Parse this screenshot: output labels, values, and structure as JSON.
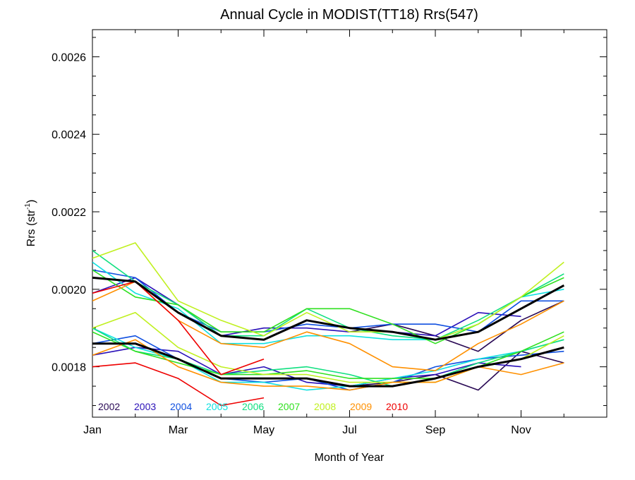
{
  "chart_data": {
    "type": "line",
    "title": "Annual Cycle in MODIST(TT18) Rrs(547)",
    "xlabel": "Month of Year",
    "ylabel_main": "Rrs (str",
    "ylabel_sup": "-1",
    "ylabel_close": ")",
    "xlim": [
      1,
      13
    ],
    "ylim": [
      0.00167,
      0.00267
    ],
    "x_ticks": [
      {
        "value": 1,
        "label": "Jan"
      },
      {
        "value": 3,
        "label": "Mar"
      },
      {
        "value": 5,
        "label": "May"
      },
      {
        "value": 7,
        "label": "Jul"
      },
      {
        "value": 9,
        "label": "Sep"
      },
      {
        "value": 11,
        "label": "Nov"
      }
    ],
    "y_ticks": [
      {
        "value": 0.0018,
        "label": "0.0018"
      },
      {
        "value": 0.002,
        "label": "0.0020"
      },
      {
        "value": 0.0022,
        "label": "0.0022"
      },
      {
        "value": 0.0024,
        "label": "0.0024"
      },
      {
        "value": 0.0026,
        "label": "0.0026"
      }
    ],
    "grid": false,
    "legend_position": "bottom-left",
    "x": [
      1,
      2,
      3,
      4,
      5,
      6,
      7,
      8,
      9,
      10,
      11,
      12
    ],
    "series": [
      {
        "name": "2002",
        "color": "#2a0a55",
        "upper": [
          null,
          null,
          null,
          null,
          null,
          null,
          0.00189,
          0.00191,
          0.00188,
          0.00184,
          0.00192,
          0.00197
        ],
        "lower": [
          null,
          null,
          null,
          null,
          null,
          null,
          0.00175,
          0.00176,
          0.00178,
          0.00174,
          0.00184,
          0.00181
        ]
      },
      {
        "name": "2003",
        "color": "#2a10b8",
        "upper": [
          0.00199,
          0.00203,
          0.00196,
          0.00188,
          0.0019,
          0.0019,
          0.00189,
          0.00189,
          0.00188,
          0.00194,
          0.00193,
          null
        ],
        "lower": [
          0.00183,
          0.00185,
          0.00184,
          0.00178,
          0.0018,
          0.00176,
          0.00175,
          0.00177,
          0.00178,
          0.00181,
          0.0018,
          null
        ]
      },
      {
        "name": "2004",
        "color": "#1050e0",
        "upper": [
          0.00205,
          0.00203,
          0.00194,
          0.00189,
          0.00189,
          0.00191,
          0.0019,
          0.00191,
          0.00191,
          0.00189,
          0.00197,
          0.00197
        ],
        "lower": [
          0.00186,
          0.00188,
          0.00182,
          0.00177,
          0.00176,
          0.00177,
          0.00174,
          0.00176,
          0.0018,
          0.00182,
          0.00183,
          0.00184
        ]
      },
      {
        "name": "2005",
        "color": "#10e0e0",
        "upper": [
          0.00207,
          0.00199,
          0.00195,
          0.00186,
          0.00186,
          0.00188,
          0.00188,
          0.00187,
          0.00187,
          0.00191,
          0.00198,
          0.002
        ],
        "lower": [
          0.0019,
          0.00185,
          0.00182,
          0.00176,
          0.00176,
          0.00174,
          0.00175,
          0.00177,
          0.00179,
          0.00182,
          0.00184,
          0.00187
        ]
      },
      {
        "name": "2006",
        "color": "#10e080",
        "upper": [
          0.0021,
          0.00202,
          0.00196,
          0.00188,
          0.00188,
          0.00195,
          0.0019,
          0.00188,
          0.00187,
          0.00192,
          0.00198,
          0.00204
        ],
        "lower": [
          0.0019,
          0.00184,
          0.00182,
          0.00178,
          0.00179,
          0.0018,
          0.00178,
          0.00175,
          0.00177,
          0.00181,
          0.00184,
          0.00187
        ]
      },
      {
        "name": "2007",
        "color": "#30e020",
        "upper": [
          0.00205,
          0.00198,
          0.00196,
          0.00189,
          0.00189,
          0.00195,
          0.00195,
          0.00191,
          0.00186,
          0.00191,
          0.00198,
          0.00203
        ],
        "lower": [
          0.00189,
          0.00184,
          0.00181,
          0.00178,
          0.00178,
          0.00179,
          0.00177,
          0.00177,
          0.00177,
          0.0018,
          0.00184,
          0.00189
        ]
      },
      {
        "name": "2008",
        "color": "#c0f020",
        "upper": [
          0.00208,
          0.00212,
          0.00197,
          0.00192,
          0.00188,
          0.00194,
          0.00189,
          0.00189,
          0.00187,
          0.00191,
          0.00198,
          0.00207
        ],
        "lower": [
          0.0019,
          0.00194,
          0.00185,
          0.0018,
          0.00178,
          0.00178,
          0.00176,
          0.00176,
          0.00176,
          0.0018,
          0.00182,
          0.00188
        ]
      },
      {
        "name": "2009",
        "color": "#ff9000",
        "upper": [
          0.00197,
          0.00202,
          0.00192,
          0.00186,
          0.00185,
          0.00189,
          0.00186,
          0.0018,
          0.00179,
          0.00186,
          0.00191,
          0.00197
        ],
        "lower": [
          0.00183,
          0.00187,
          0.0018,
          0.00176,
          0.00175,
          0.00175,
          0.00174,
          0.00176,
          0.00176,
          0.0018,
          0.00178,
          0.00181
        ]
      },
      {
        "name": "2010",
        "color": "#ee0000",
        "upper": [
          0.00199,
          0.00202,
          0.00192,
          0.00178,
          0.00182,
          null,
          null,
          null,
          null,
          null,
          null,
          null
        ],
        "lower": [
          0.0018,
          0.00181,
          0.00177,
          0.0017,
          0.00172,
          null,
          null,
          null,
          null,
          null,
          null,
          null
        ]
      },
      {
        "name": "",
        "color": "#000000",
        "bold": true,
        "upper": [
          0.00203,
          0.00202,
          0.00194,
          0.00188,
          0.00187,
          0.00192,
          0.0019,
          0.00189,
          0.00187,
          0.00189,
          0.00195,
          0.00201
        ],
        "lower": [
          0.00186,
          0.00186,
          0.00182,
          0.00177,
          0.00177,
          0.00177,
          0.00175,
          0.00175,
          0.00177,
          0.0018,
          0.00182,
          0.00185
        ]
      }
    ]
  }
}
